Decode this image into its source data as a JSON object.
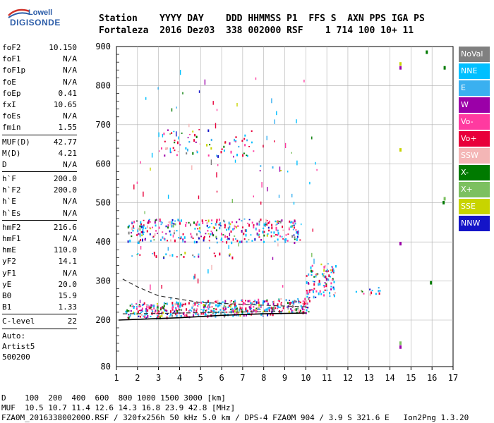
{
  "logo": {
    "top": "Lowell",
    "bottom": "DIGISONDE"
  },
  "header": {
    "line1": "Station    YYYY DAY    DDD HHMMSS P1  FFS S  AXN PPS IGA PS",
    "line2": "Fortaleza  2016 Dez03  338 002000 RSF    1 714 100 10+ 11"
  },
  "params": {
    "group1": [
      {
        "name": "foF2",
        "value": "10.150"
      },
      {
        "name": "foF1",
        "value": "N/A"
      },
      {
        "name": "foF1p",
        "value": "N/A"
      },
      {
        "name": "foE",
        "value": "N/A"
      },
      {
        "name": "foEp",
        "value": "0.41"
      },
      {
        "name": "fxI",
        "value": "10.65"
      },
      {
        "name": "foEs",
        "value": "N/A"
      },
      {
        "name": "fmin",
        "value": "1.55"
      }
    ],
    "group2": [
      {
        "name": "MUF(D)",
        "value": "42.77"
      },
      {
        "name": "M(D)",
        "value": "4.21"
      },
      {
        "name": "D",
        "value": "N/A"
      }
    ],
    "group3": [
      {
        "name": "h`F",
        "value": "200.0"
      },
      {
        "name": "h`F2",
        "value": "200.0"
      },
      {
        "name": "h`E",
        "value": "N/A"
      },
      {
        "name": "h`Es",
        "value": "N/A"
      }
    ],
    "group4": [
      {
        "name": "hmF2",
        "value": "216.6"
      },
      {
        "name": "hmF1",
        "value": "N/A"
      },
      {
        "name": "hmE",
        "value": "110.0"
      },
      {
        "name": "yF2",
        "value": "14.1"
      },
      {
        "name": "yF1",
        "value": "N/A"
      },
      {
        "name": "yE",
        "value": "20.0"
      },
      {
        "name": "B0",
        "value": "15.9"
      },
      {
        "name": "B1",
        "value": "1.33"
      }
    ],
    "group5": [
      {
        "name": "C-level",
        "value": "22"
      }
    ],
    "auto": [
      "Auto:",
      "Artist5",
      "500200"
    ]
  },
  "legend": [
    {
      "label": "NoVal",
      "color": "#808080",
      "text": "#ffffff"
    },
    {
      "label": "NNE",
      "color": "#00bfff",
      "text": "#ffffff"
    },
    {
      "label": "E",
      "color": "#3ab0f0",
      "text": "#ffffff"
    },
    {
      "label": "W",
      "color": "#9b00a8",
      "text": "#ffffff"
    },
    {
      "label": "Vo-",
      "color": "#ff3aa0",
      "text": "#ffffff"
    },
    {
      "label": "Vo+",
      "color": "#e8003a",
      "text": "#ffffff"
    },
    {
      "label": "SSW",
      "color": "#f4b6b6",
      "text": "#ffffff"
    },
    {
      "label": "X-",
      "color": "#007a00",
      "text": "#ffffff"
    },
    {
      "label": "X+",
      "color": "#7cc060",
      "text": "#ffffff"
    },
    {
      "label": "SSE",
      "color": "#c8d400",
      "text": "#ffffff"
    },
    {
      "label": "NNW",
      "color": "#1414c8",
      "text": "#ffffff"
    }
  ],
  "chart_data": {
    "type": "scatter",
    "x_ticks": [
      "1",
      "2",
      "3",
      "4",
      "5",
      "6",
      "7",
      "8",
      "9",
      "10",
      "11",
      "12",
      "13",
      "14",
      "15",
      "16",
      "17"
    ],
    "y_ticks": [
      "80",
      "200",
      "300",
      "400",
      "500",
      "600",
      "700",
      "800",
      "900"
    ],
    "xlim": [
      1,
      17
    ],
    "ylim_label_range": [
      80,
      900
    ],
    "grid": true,
    "trace_profile": [
      {
        "f": 1.1,
        "h": 200
      },
      {
        "f": 2,
        "h": 202
      },
      {
        "f": 4,
        "h": 206
      },
      {
        "f": 6,
        "h": 212
      },
      {
        "f": 8,
        "h": 216
      },
      {
        "f": 10,
        "h": 218
      }
    ],
    "dashed_upper": [
      {
        "f": 1.3,
        "h": 305
      },
      {
        "f": 2,
        "h": 285
      },
      {
        "f": 3,
        "h": 262
      },
      {
        "f": 5,
        "h": 245
      },
      {
        "f": 8,
        "h": 238
      },
      {
        "f": 10,
        "h": 234
      }
    ],
    "dashed_lower": [
      {
        "f": 1.3,
        "h": 216
      },
      {
        "f": 3,
        "h": 217
      },
      {
        "f": 6,
        "h": 220
      },
      {
        "f": 9,
        "h": 222
      }
    ],
    "echo_bands": [
      {
        "f0": 1.4,
        "f1": 10.2,
        "h0": 205,
        "h1": 245,
        "density": 1.0
      },
      {
        "f0": 1.5,
        "f1": 9.8,
        "h0": 400,
        "h1": 460,
        "density": 0.45
      },
      {
        "f0": 1.7,
        "f1": 6.5,
        "h0": 362,
        "h1": 375,
        "density": 0.3
      },
      {
        "f0": 3.0,
        "f1": 7.5,
        "h0": 620,
        "h1": 690,
        "density": 0.15
      },
      {
        "f0": 7.6,
        "f1": 9.2,
        "h0": 580,
        "h1": 600,
        "density": 0.1
      },
      {
        "f0": 10.0,
        "f1": 11.4,
        "h0": 245,
        "h1": 330,
        "density": 0.55
      },
      {
        "f0": 12.1,
        "f1": 13.5,
        "h0": 268,
        "h1": 285,
        "density": 0.4
      }
    ]
  },
  "bottom": {
    "line1": "D    100  200  400  600  800 1000 1500 3000 [km]",
    "line2": "MUF  10.5 10.7 11.4 12.6 14.3 16.8 23.9 42.8 [MHz]",
    "line3": "FZA0M_2016338002000.RSF / 320fx256h 50 kHz 5.0 km / DPS-4 FZA0M 904 / 3.9 S 321.6 E   Ion2Png 1.3.20"
  }
}
